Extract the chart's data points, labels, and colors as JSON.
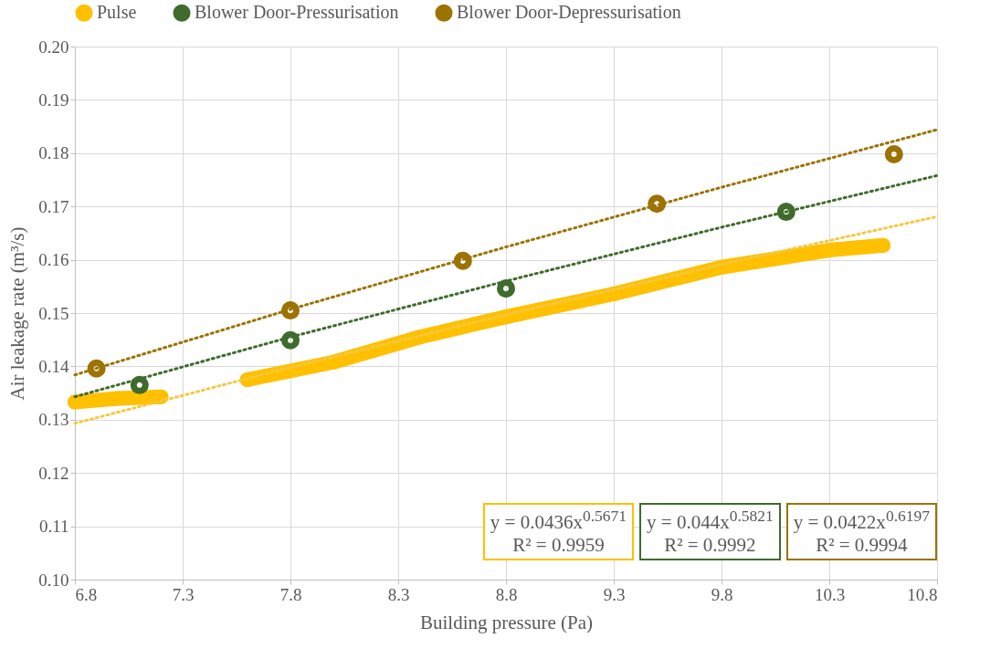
{
  "chart_data": {
    "type": "scatter",
    "xlabel": "Building pressure (Pa)",
    "ylabel": "Air leakage rate (m³/s)",
    "xlim": [
      6.8,
      10.8
    ],
    "xticks": [
      6.8,
      7.3,
      7.8,
      8.3,
      8.8,
      9.3,
      9.8,
      10.3,
      10.8
    ],
    "ylim": [
      0.1,
      0.2
    ],
    "yticks": [
      {
        "value": 0.1,
        "label": "0.10"
      },
      0.11,
      0.12,
      0.13,
      0.14,
      0.15,
      0.16,
      0.17,
      0.18,
      0.19,
      {
        "value": 0.2,
        "label": "0.20"
      }
    ],
    "grid": true,
    "legend": "top",
    "marker": "circle",
    "series": [
      {
        "name": "Pulse",
        "type": "line",
        "line_style": "solid",
        "color": "#ffc000",
        "x": [
          6.8,
          7.0,
          7.2,
          7.4,
          7.6,
          8.0,
          8.4,
          8.8,
          9.3,
          9.8,
          10.3,
          10.55
        ],
        "values": [
          0.1333,
          0.134,
          0.1343,
          null,
          0.1375,
          0.1408,
          0.1455,
          0.1493,
          0.1536,
          0.1586,
          0.1618,
          0.1627
        ]
      },
      {
        "name": "Blower Door-Pressurisation",
        "color": "#3f6b2c",
        "x": [
          7.1,
          7.8,
          8.8,
          10.1
        ],
        "values": [
          0.1365,
          0.1449,
          0.1546,
          0.169
        ]
      },
      {
        "name": "Blower Door-Depressurisation",
        "color": "#9c7200",
        "x": [
          6.9,
          7.8,
          8.6,
          9.5,
          10.6
        ],
        "values": [
          0.1396,
          0.1505,
          0.1598,
          0.1705,
          0.1798
        ]
      },
      {
        "type": "line",
        "line_style": "dotted",
        "marker": "none",
        "color": "#f5c842",
        "x": [
          6.8,
          7.8,
          8.8,
          9.8,
          10.8
        ],
        "values": [
          0.1293,
          0.1398,
          0.1497,
          0.1591,
          0.1681
        ]
      },
      {
        "type": "line",
        "line_style": "dotted",
        "marker": "none",
        "color": "#3f6b2c",
        "x": [
          6.8,
          7.8,
          8.8,
          9.8,
          10.8
        ],
        "values": [
          0.1343,
          0.1455,
          0.156,
          0.1661,
          0.1758
        ]
      },
      {
        "type": "line",
        "line_style": "dotted",
        "marker": "none",
        "color": "#9c7200",
        "x": [
          6.8,
          7.8,
          8.8,
          9.8,
          10.8
        ],
        "values": [
          0.1384,
          0.1507,
          0.1624,
          0.1736,
          0.1844
        ]
      }
    ],
    "annotations": [
      "y = 0.0436x$^{0.5671}$\nR² = 0.9959",
      "y = 0.044x$^{0.5821}$\nR² = 0.9992",
      "y = 0.0422x$^{0.6197}$\nR² = 0.9994"
    ]
  }
}
